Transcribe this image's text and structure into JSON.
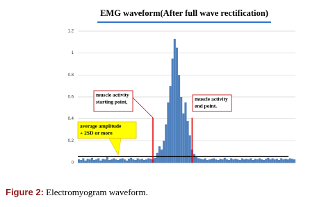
{
  "chart_data": {
    "type": "bar",
    "title": "EMG waveform(After full wave rectification)",
    "values": [
      0.03,
      0.025,
      0.04,
      0.02,
      0.035,
      0.03,
      0.045,
      0.025,
      0.03,
      0.04,
      0.02,
      0.035,
      0.03,
      0.05,
      0.025,
      0.03,
      0.04,
      0.03,
      0.025,
      0.035,
      0.04,
      0.03,
      0.02,
      0.035,
      0.045,
      0.03,
      0.025,
      0.04,
      0.03,
      0.035,
      0.025,
      0.03,
      0.04,
      0.035,
      0.03,
      0.045,
      0.09,
      0.15,
      0.12,
      0.2,
      0.35,
      0.55,
      0.7,
      0.95,
      1.13,
      1.05,
      0.8,
      0.6,
      0.45,
      0.55,
      0.38,
      0.25,
      0.12,
      0.08,
      0.05,
      0.04,
      0.035,
      0.03,
      0.04,
      0.025,
      0.03,
      0.035,
      0.04,
      0.03,
      0.025,
      0.035,
      0.03,
      0.045,
      0.03,
      0.025,
      0.04,
      0.03,
      0.035,
      0.03,
      0.025,
      0.04,
      0.03,
      0.035,
      0.03,
      0.04,
      0.025,
      0.035,
      0.03,
      0.04,
      0.03,
      0.025,
      0.035,
      0.045,
      0.03,
      0.04,
      0.03,
      0.035,
      0.025,
      0.04,
      0.03,
      0.035,
      0.03,
      0.04,
      0.035,
      0.03
    ],
    "color": "#4f81bd",
    "ylim": [
      0,
      1.2
    ],
    "yticks": [
      0,
      0.2,
      0.4,
      0.6,
      0.8,
      1,
      1.2
    ],
    "grid": true,
    "threshold": 0.055,
    "annotations": [
      {
        "lines": [
          "muscle activity",
          "starting point,"
        ],
        "x": 34
      },
      {
        "lines": [
          "muscle activity",
          "end point."
        ],
        "x": 52
      },
      {
        "lines": [
          "average amplitude",
          "+ 2SD or more"
        ]
      }
    ]
  },
  "caption": {
    "label": "Figure 2:",
    "text": " Electromyogram waveform."
  }
}
